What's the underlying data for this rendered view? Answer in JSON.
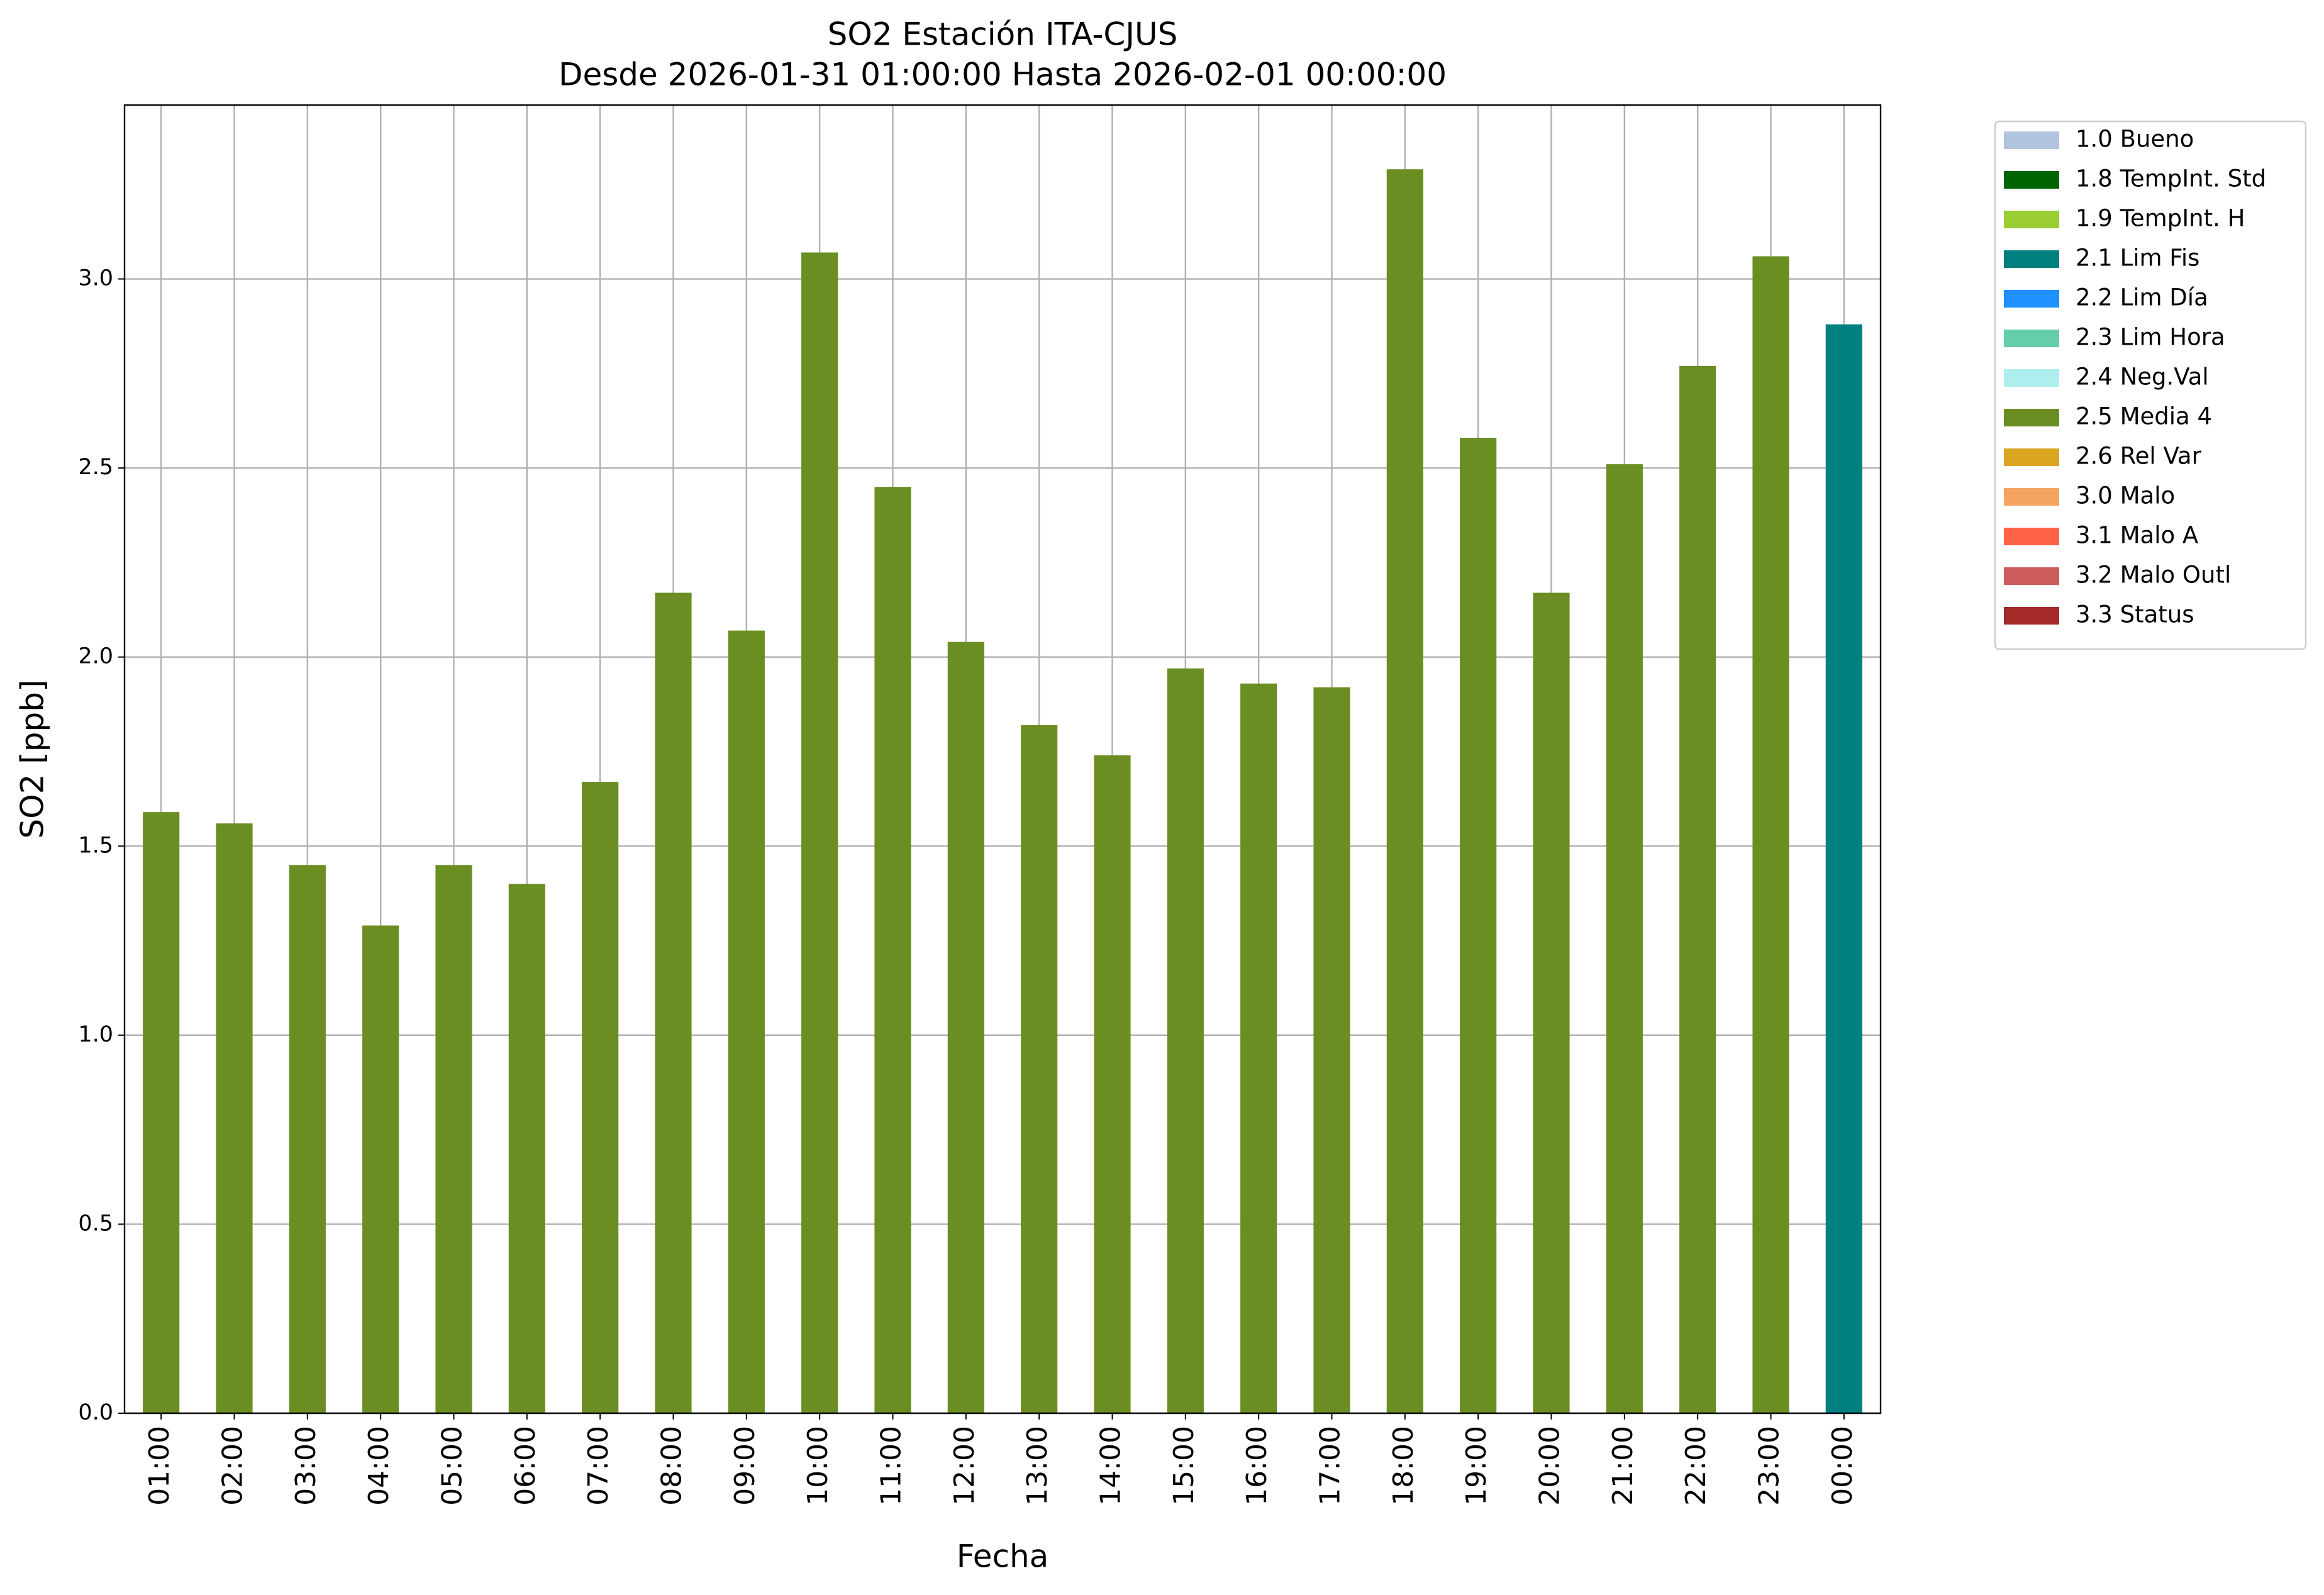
{
  "chart_data": {
    "type": "bar",
    "stacked": true,
    "title": "SO2 Estación ITA-CJUS",
    "subtitle": "Desde 2026-01-31 01:00:00 Hasta 2026-02-01 00:00:00",
    "xlabel": "Fecha",
    "ylabel": "SO2 [ppb]",
    "categories": [
      "01:00",
      "02:00",
      "03:00",
      "04:00",
      "05:00",
      "06:00",
      "07:00",
      "08:00",
      "09:00",
      "10:00",
      "11:00",
      "12:00",
      "13:00",
      "14:00",
      "15:00",
      "16:00",
      "17:00",
      "18:00",
      "19:00",
      "20:00",
      "21:00",
      "22:00",
      "23:00",
      "00:00"
    ],
    "series": [
      {
        "name": "1.0 Bueno",
        "color": "#b0c4de",
        "values": [
          null,
          null,
          null,
          null,
          null,
          null,
          null,
          null,
          null,
          null,
          null,
          null,
          null,
          null,
          null,
          null,
          null,
          null,
          null,
          null,
          null,
          null,
          null,
          null
        ]
      },
      {
        "name": "1.8 TempInt. Std",
        "color": "#006400",
        "values": [
          null,
          null,
          null,
          null,
          null,
          null,
          null,
          null,
          null,
          null,
          null,
          null,
          null,
          null,
          null,
          null,
          null,
          null,
          null,
          null,
          null,
          null,
          null,
          null
        ]
      },
      {
        "name": "1.9 TempInt. H",
        "color": "#9acd32",
        "values": [
          null,
          null,
          null,
          null,
          null,
          null,
          null,
          null,
          null,
          null,
          null,
          null,
          null,
          null,
          null,
          null,
          null,
          null,
          null,
          null,
          null,
          null,
          null,
          null
        ]
      },
      {
        "name": "2.1 Lim Fis",
        "color": "#008080",
        "values": [
          null,
          null,
          null,
          null,
          null,
          null,
          null,
          null,
          null,
          null,
          null,
          null,
          null,
          null,
          null,
          null,
          null,
          null,
          null,
          null,
          null,
          null,
          null,
          2.88
        ]
      },
      {
        "name": "2.2 Lim Día",
        "color": "#1e90ff",
        "values": [
          null,
          null,
          null,
          null,
          null,
          null,
          null,
          null,
          null,
          null,
          null,
          null,
          null,
          null,
          null,
          null,
          null,
          null,
          null,
          null,
          null,
          null,
          null,
          null
        ]
      },
      {
        "name": "2.3 Lim Hora",
        "color": "#66cdaa",
        "values": [
          null,
          null,
          null,
          null,
          null,
          null,
          null,
          null,
          null,
          null,
          null,
          null,
          null,
          null,
          null,
          null,
          null,
          null,
          null,
          null,
          null,
          null,
          null,
          null
        ]
      },
      {
        "name": "2.4 Neg.Val",
        "color": "#afeeee",
        "values": [
          null,
          null,
          null,
          null,
          null,
          null,
          null,
          null,
          null,
          null,
          null,
          null,
          null,
          null,
          null,
          null,
          null,
          null,
          null,
          null,
          null,
          null,
          null,
          null
        ]
      },
      {
        "name": "2.5 Media 4",
        "color": "#6b8e23",
        "values": [
          1.59,
          1.56,
          1.45,
          1.29,
          1.45,
          1.4,
          1.67,
          2.17,
          2.07,
          3.07,
          2.45,
          2.04,
          1.82,
          1.74,
          1.97,
          1.93,
          1.92,
          3.29,
          2.58,
          2.17,
          2.51,
          2.77,
          3.06,
          null
        ]
      },
      {
        "name": "2.6 Rel Var",
        "color": "#daa520",
        "values": [
          null,
          null,
          null,
          null,
          null,
          null,
          null,
          null,
          null,
          null,
          null,
          null,
          null,
          null,
          null,
          null,
          null,
          null,
          null,
          null,
          null,
          null,
          null,
          null
        ]
      },
      {
        "name": "3.0 Malo",
        "color": "#f4a460",
        "values": [
          null,
          null,
          null,
          null,
          null,
          null,
          null,
          null,
          null,
          null,
          null,
          null,
          null,
          null,
          null,
          null,
          null,
          null,
          null,
          null,
          null,
          null,
          null,
          null
        ]
      },
      {
        "name": "3.1 Malo A",
        "color": "#ff6347",
        "values": [
          null,
          null,
          null,
          null,
          null,
          null,
          null,
          null,
          null,
          null,
          null,
          null,
          null,
          null,
          null,
          null,
          null,
          null,
          null,
          null,
          null,
          null,
          null,
          null
        ]
      },
      {
        "name": "3.2 Malo Outl",
        "color": "#cd5c5c",
        "values": [
          null,
          null,
          null,
          null,
          null,
          null,
          null,
          null,
          null,
          null,
          null,
          null,
          null,
          null,
          null,
          null,
          null,
          null,
          null,
          null,
          null,
          null,
          null,
          null
        ]
      },
      {
        "name": "3.3 Status",
        "color": "#a52a2a",
        "values": [
          null,
          null,
          null,
          null,
          null,
          null,
          null,
          null,
          null,
          null,
          null,
          null,
          null,
          null,
          null,
          null,
          null,
          null,
          null,
          null,
          null,
          null,
          null,
          null
        ]
      }
    ],
    "ylim": [
      0,
      3.46
    ],
    "yticks": [
      {
        "value": 0,
        "label": "0.0"
      },
      0.5,
      {
        "value": 1,
        "label": "1.0"
      },
      1.5,
      {
        "value": 2,
        "label": "2.0"
      },
      2.5,
      {
        "value": 3,
        "label": "3.0"
      }
    ],
    "grid": true,
    "legend": "outside right"
  }
}
